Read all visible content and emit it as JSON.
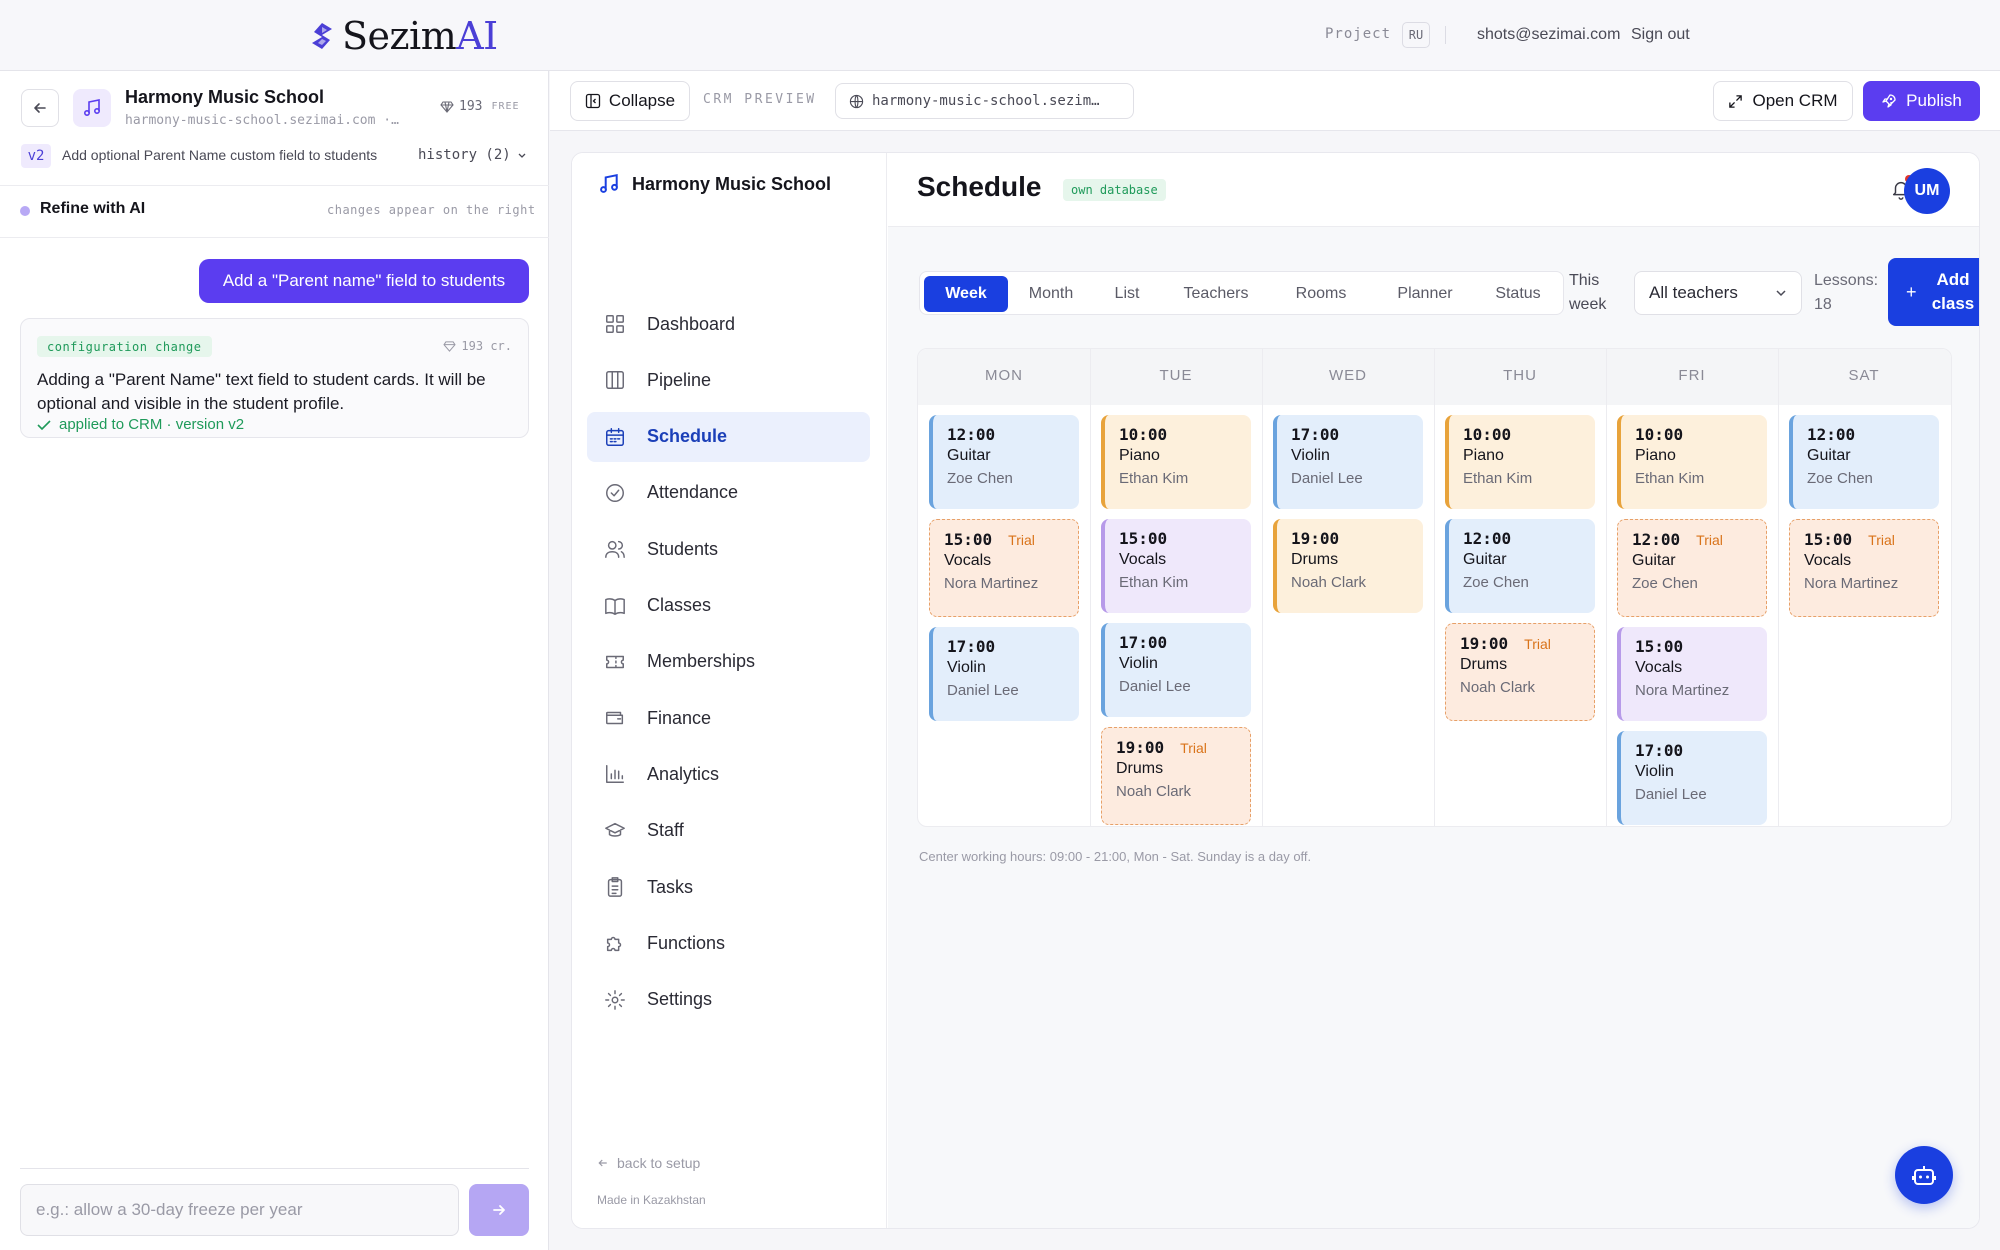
{
  "brand": {
    "name_main": "Sezim",
    "name_accent": "AI"
  },
  "topbar": {
    "project_label": "Project",
    "lang": "RU",
    "email": "shots@sezimai.com",
    "signout": "Sign out"
  },
  "chat": {
    "project_name": "Harmony Music School",
    "project_domain": "harmony-music-school.sezimai.com ·…",
    "credits": "193",
    "credits_plan": "FREE",
    "version_badge": "v2",
    "version_text": "Add optional Parent Name custom field to students",
    "history_label": "history (2)",
    "refine_label": "Refine with AI",
    "refine_hint": "changes appear on the right",
    "user_message": "Add a \"Parent name\" field to students",
    "config_tag": "configuration change",
    "config_credits": "193 cr.",
    "config_text": "Adding a \"Parent Name\" text field to student cards. It will be optional and visible in the student profile.",
    "config_applied": "applied to CRM · version v2",
    "input_placeholder": "e.g.: allow a 30-day freeze per year"
  },
  "toolbar": {
    "collapse_label": "Collapse",
    "preview_label": "CRM PREVIEW",
    "url": "harmony-music-school.sezim…",
    "open_crm_label": "Open CRM",
    "publish_label": "Publish"
  },
  "crm": {
    "brand": "Harmony Music School",
    "nav": [
      {
        "label": "Dashboard",
        "icon": "grid-icon"
      },
      {
        "label": "Pipeline",
        "icon": "columns-icon"
      },
      {
        "label": "Schedule",
        "icon": "calendar-icon",
        "active": true
      },
      {
        "label": "Attendance",
        "icon": "check-circle-icon"
      },
      {
        "label": "Students",
        "icon": "users-icon"
      },
      {
        "label": "Classes",
        "icon": "book-icon"
      },
      {
        "label": "Memberships",
        "icon": "ticket-icon"
      },
      {
        "label": "Finance",
        "icon": "wallet-icon"
      },
      {
        "label": "Analytics",
        "icon": "bar-chart-icon"
      },
      {
        "label": "Staff",
        "icon": "graduation-cap-icon"
      },
      {
        "label": "Tasks",
        "icon": "clipboard-icon"
      },
      {
        "label": "Functions",
        "icon": "puzzle-icon"
      },
      {
        "label": "Settings",
        "icon": "gear-icon"
      }
    ],
    "back_to_setup": "back to setup",
    "made_in": "Made in Kazakhstan",
    "page_title": "Schedule",
    "own_db": "own database",
    "avatar": "UM",
    "tabs": [
      "Week",
      "Month",
      "List",
      "Teachers",
      "Rooms",
      "Planner",
      "Status"
    ],
    "active_tab": "Week",
    "this_week_1": "This",
    "this_week_2": "week",
    "teacher_filter": "All teachers",
    "lessons_label": "Lessons:",
    "lessons_count": "18",
    "add_class_line1": "Add",
    "add_class_line2": "class",
    "days": [
      "MON",
      "TUE",
      "WED",
      "THU",
      "FRI",
      "SAT"
    ],
    "events": [
      [
        {
          "time": "12:00",
          "course": "Guitar",
          "teacher": "Zoe Chen",
          "color": "blue"
        },
        {
          "time": "15:00",
          "course": "Vocals",
          "teacher": "Nora Martinez",
          "trial": "Trial"
        },
        {
          "time": "17:00",
          "course": "Violin",
          "teacher": "Daniel Lee",
          "color": "blue"
        }
      ],
      [
        {
          "time": "10:00",
          "course": "Piano",
          "teacher": "Ethan Kim",
          "color": "orange"
        },
        {
          "time": "15:00",
          "course": "Vocals",
          "teacher": "Ethan Kim",
          "color": "purple"
        },
        {
          "time": "17:00",
          "course": "Violin",
          "teacher": "Daniel Lee",
          "color": "blue"
        },
        {
          "time": "19:00",
          "course": "Drums",
          "teacher": "Noah Clark",
          "trial": "Trial"
        }
      ],
      [
        {
          "time": "17:00",
          "course": "Violin",
          "teacher": "Daniel Lee",
          "color": "blue"
        },
        {
          "time": "19:00",
          "course": "Drums",
          "teacher": "Noah Clark",
          "color": "orange"
        }
      ],
      [
        {
          "time": "10:00",
          "course": "Piano",
          "teacher": "Ethan Kim",
          "color": "orange"
        },
        {
          "time": "12:00",
          "course": "Guitar",
          "teacher": "Zoe Chen",
          "color": "blue"
        },
        {
          "time": "19:00",
          "course": "Drums",
          "teacher": "Noah Clark",
          "trial": "Trial"
        }
      ],
      [
        {
          "time": "10:00",
          "course": "Piano",
          "teacher": "Ethan Kim",
          "color": "orange"
        },
        {
          "time": "12:00",
          "course": "Guitar",
          "teacher": "Zoe Chen",
          "trial": "Trial"
        },
        {
          "time": "15:00",
          "course": "Vocals",
          "teacher": "Nora Martinez",
          "color": "purple"
        },
        {
          "time": "17:00",
          "course": "Violin",
          "teacher": "Daniel Lee",
          "color": "blue"
        }
      ],
      [
        {
          "time": "12:00",
          "course": "Guitar",
          "teacher": "Zoe Chen",
          "color": "blue"
        },
        {
          "time": "15:00",
          "course": "Vocals",
          "teacher": "Nora Martinez",
          "trial": "Trial"
        }
      ]
    ],
    "hours_note": "Center working hours: 09:00 - 21:00, Mon - Sat. Sunday is a day off."
  },
  "colors": {
    "brand": "#4b3fd6",
    "primary": "#1a3fe0",
    "accent_purple": "#5b3df0",
    "success": "#1f9a5a",
    "trial": "#d9731a"
  }
}
